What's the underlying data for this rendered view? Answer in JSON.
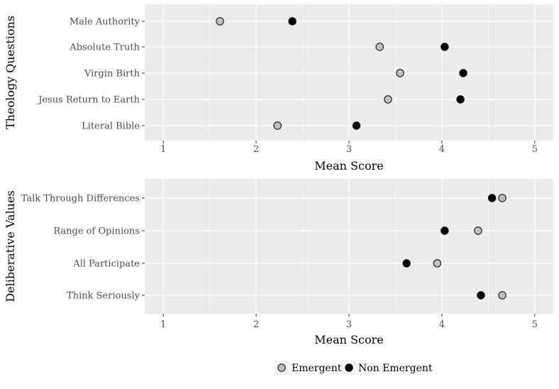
{
  "chart_data": [
    {
      "type": "dot",
      "ylabel": "Theology Questions",
      "xlabel": "Mean Score",
      "xlim": [
        0.8,
        5.2
      ],
      "xticks": [
        1,
        2,
        3,
        4,
        5
      ],
      "grid": true,
      "categories": [
        "Male Authority",
        "Absolute Truth",
        "Virgin Birth",
        "Jesus Return to Earth",
        "Literal Bible"
      ],
      "series": [
        {
          "name": "Emergent",
          "values": [
            1.61,
            3.33,
            3.55,
            3.42,
            2.23
          ]
        },
        {
          "name": "Non Emergent",
          "values": [
            2.39,
            4.03,
            4.23,
            4.2,
            3.08
          ]
        }
      ]
    },
    {
      "type": "dot",
      "ylabel": "Deliberative Values",
      "xlabel": "Mean Score",
      "xlim": [
        0.8,
        5.2
      ],
      "xticks": [
        1,
        2,
        3,
        4,
        5
      ],
      "grid": true,
      "categories": [
        "Talk Through Differences",
        "Range of Opinions",
        "All Participate",
        "Think Seriously"
      ],
      "series": [
        {
          "name": "Emergent",
          "values": [
            4.65,
            4.39,
            3.95,
            4.65
          ]
        },
        {
          "name": "Non Emergent",
          "values": [
            4.54,
            4.03,
            3.62,
            4.42
          ]
        }
      ]
    }
  ],
  "legend": {
    "placement": "bottom",
    "items": [
      {
        "label": "Emergent",
        "color": "#bebebe"
      },
      {
        "label": "Non Emergent",
        "color": "#000000"
      }
    ]
  },
  "colors": {
    "panel_background": "#ebebeb",
    "grid": "#ffffff",
    "emergent": "#bebebe",
    "non_emergent": "#000000"
  }
}
